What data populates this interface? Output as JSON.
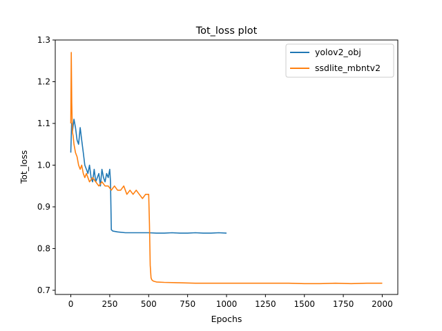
{
  "chart_data": {
    "type": "line",
    "title": "Tot_loss plot",
    "xlabel": "Epochs",
    "ylabel": "Tot_loss",
    "xlim": [
      -100,
      2100
    ],
    "ylim": [
      0.69,
      1.3
    ],
    "xticks": [
      0,
      250,
      500,
      750,
      1000,
      1250,
      1500,
      1750,
      2000
    ],
    "yticks": [
      0.7,
      0.8,
      0.9,
      1.0,
      1.1,
      1.2,
      1.3
    ],
    "ytick_labels": [
      "0.7",
      "0.8",
      "0.9",
      "1.0",
      "1.1",
      "1.2",
      "1.3"
    ],
    "grid": false,
    "legend_position": "top-right",
    "series": [
      {
        "name": "yolov2_obj",
        "color": "#1f77b4",
        "x": [
          0,
          5,
          10,
          20,
          30,
          40,
          50,
          60,
          70,
          80,
          90,
          100,
          110,
          120,
          130,
          140,
          150,
          160,
          170,
          180,
          190,
          200,
          210,
          220,
          230,
          240,
          250,
          255,
          260,
          270,
          300,
          350,
          400,
          450,
          500,
          550,
          600,
          650,
          700,
          750,
          800,
          850,
          900,
          950,
          1000
        ],
        "y": [
          1.03,
          1.1,
          1.08,
          1.11,
          1.09,
          1.06,
          1.05,
          1.09,
          1.06,
          1.03,
          1.0,
          0.99,
          0.98,
          1.0,
          0.97,
          0.96,
          0.99,
          0.96,
          0.97,
          0.98,
          0.95,
          0.99,
          0.97,
          0.96,
          0.98,
          0.97,
          0.99,
          0.96,
          0.845,
          0.842,
          0.84,
          0.838,
          0.838,
          0.838,
          0.838,
          0.837,
          0.837,
          0.838,
          0.837,
          0.837,
          0.838,
          0.837,
          0.837,
          0.838,
          0.837
        ]
      },
      {
        "name": "ssdlite_mbntv2",
        "color": "#ff7f0e",
        "x": [
          0,
          3,
          6,
          10,
          15,
          20,
          30,
          40,
          50,
          60,
          70,
          80,
          90,
          100,
          120,
          140,
          160,
          180,
          200,
          220,
          240,
          260,
          280,
          300,
          320,
          340,
          360,
          380,
          400,
          420,
          440,
          460,
          480,
          500,
          505,
          510,
          515,
          520,
          530,
          550,
          600,
          700,
          800,
          900,
          1000,
          1100,
          1200,
          1300,
          1400,
          1500,
          1600,
          1700,
          1800,
          1900,
          2000
        ],
        "y": [
          1.1,
          1.27,
          1.15,
          1.08,
          1.07,
          1.05,
          1.03,
          1.02,
          1.0,
          0.99,
          1.0,
          0.98,
          0.97,
          0.98,
          0.96,
          0.97,
          0.96,
          0.95,
          0.96,
          0.95,
          0.95,
          0.94,
          0.95,
          0.94,
          0.94,
          0.95,
          0.93,
          0.94,
          0.93,
          0.94,
          0.93,
          0.92,
          0.93,
          0.93,
          0.86,
          0.76,
          0.73,
          0.725,
          0.722,
          0.72,
          0.719,
          0.718,
          0.717,
          0.717,
          0.717,
          0.717,
          0.717,
          0.717,
          0.717,
          0.716,
          0.716,
          0.717,
          0.716,
          0.717,
          0.717
        ]
      }
    ]
  }
}
